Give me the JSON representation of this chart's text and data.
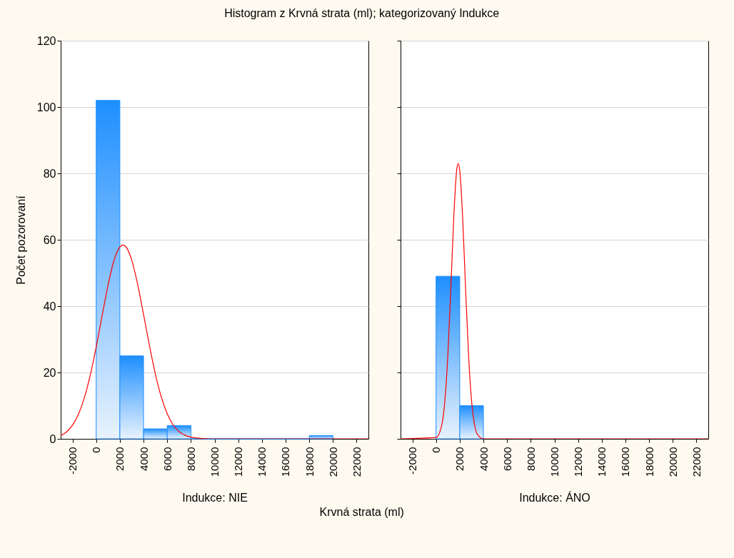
{
  "chart_data": [
    {
      "type": "histogram",
      "title": "Histogram z Krvná strata (ml); kategorizovaný Indukce",
      "xlabel": "Indukce: NIE",
      "ylabel": "Počet pozorovaní",
      "annotations": [
        "Krvná strata (ml)"
      ],
      "xlim": [
        -3000,
        23000
      ],
      "xticks": [
        -2000,
        0,
        2000,
        4000,
        6000,
        8000,
        10000,
        12000,
        14000,
        16000,
        18000,
        20000,
        22000
      ],
      "ylim": [
        0,
        120
      ],
      "yticks": [
        0,
        20,
        40,
        60,
        80,
        100,
        120
      ],
      "grid": "y",
      "line_style": "solid",
      "series": [
        {
          "type": "histogram",
          "color": "#1e8fff",
          "bins": [
            0,
            2000,
            4000,
            6000,
            8000,
            10000,
            12000,
            14000,
            16000,
            18000,
            20000
          ],
          "values": [
            102,
            25,
            3,
            4,
            0,
            0,
            0,
            0,
            0,
            1
          ]
        },
        {
          "type": "line",
          "color": "#ff0000",
          "x": [
            -3000,
            -2500,
            -2000,
            -1500,
            -1000,
            -500,
            0,
            500,
            1000,
            1500,
            2000,
            2260,
            2500,
            3000,
            3500,
            4000,
            4500,
            5000,
            5500,
            6000,
            6500,
            7000,
            7500,
            8000,
            9000,
            9500,
            23000
          ],
          "values": [
            1.0,
            2.1,
            4.1,
            7.4,
            12.4,
            19.2,
            27.7,
            37.1,
            46.3,
            53.7,
            57.8,
            58.4,
            57.9,
            53.9,
            46.6,
            37.5,
            28.1,
            19.5,
            12.6,
            7.6,
            4.2,
            2.2,
            1.1,
            0.5,
            0.1,
            0,
            0
          ]
        }
      ]
    },
    {
      "type": "histogram",
      "xlabel": "Indukce: ÁNO",
      "xlim": [
        -3000,
        23000
      ],
      "xticks": [
        -2000,
        0,
        2000,
        4000,
        6000,
        8000,
        10000,
        12000,
        14000,
        16000,
        18000,
        20000,
        22000
      ],
      "ylim": [
        0,
        120
      ],
      "yticks": [
        0,
        20,
        40,
        60,
        80,
        100,
        120
      ],
      "grid": "y",
      "tick_labels": "x",
      "line_style": "solid",
      "series": [
        {
          "type": "histogram",
          "color": "#1e8fff",
          "bins": [
            0,
            2000,
            4000
          ],
          "values": [
            49,
            10
          ]
        },
        {
          "type": "line",
          "color": "#ff0000",
          "x": [
            -3000,
            0,
            500,
            750,
            1000,
            1250,
            1500,
            1750,
            1870,
            2000,
            2250,
            2500,
            2750,
            3000,
            3250,
            3500,
            4000,
            23000
          ],
          "values": [
            0,
            0.4,
            4.5,
            11.8,
            25.6,
            45.6,
            67.1,
            81.2,
            83,
            80.9,
            66.3,
            44.8,
            24.9,
            11.4,
            4.3,
            1.3,
            0,
            0
          ]
        }
      ]
    }
  ]
}
